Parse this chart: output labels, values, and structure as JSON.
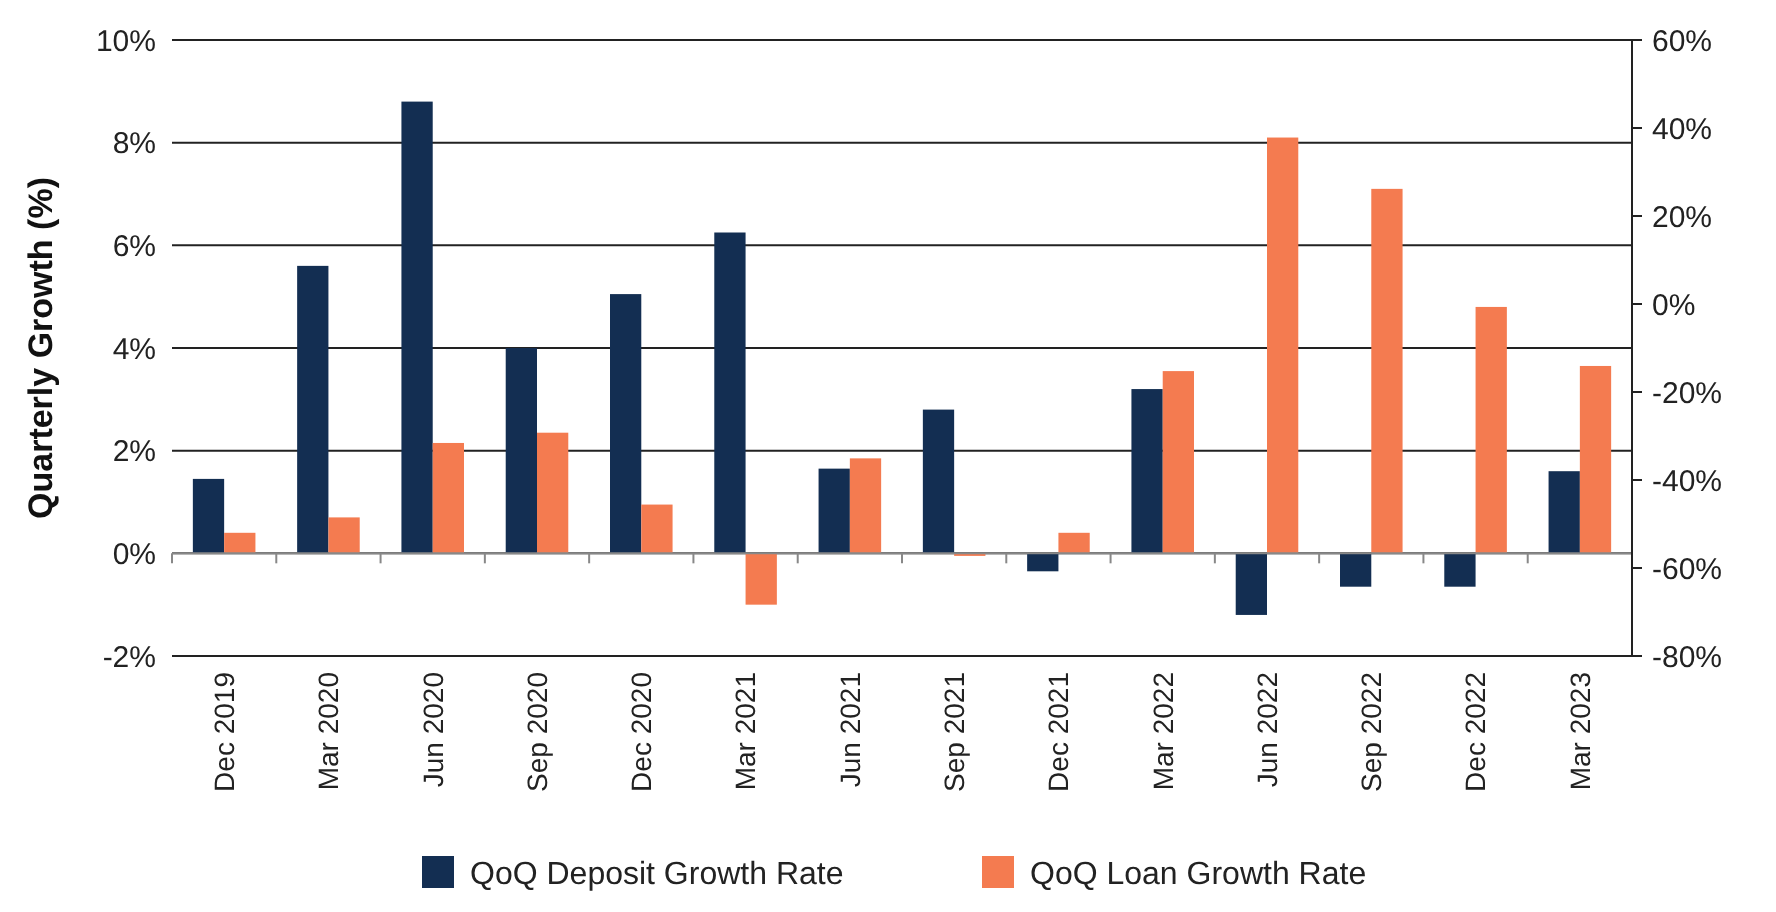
{
  "chart_data": {
    "type": "bar",
    "ylabel": "Quarterly Growth (%)",
    "categories": [
      "Dec 2019",
      "Mar 2020",
      "Jun 2020",
      "Sep 2020",
      "Dec 2020",
      "Mar 2021",
      "Jun 2021",
      "Sep 2021",
      "Dec 2021",
      "Mar 2022",
      "Jun 2022",
      "Sep 2022",
      "Dec 2022",
      "Mar 2023"
    ],
    "series": [
      {
        "name": "QoQ Deposit Growth Rate",
        "color": "#132e52",
        "values": [
          1.45,
          5.6,
          8.8,
          4.0,
          5.05,
          6.25,
          1.65,
          2.8,
          -0.35,
          3.2,
          -1.2,
          -0.65,
          -0.65,
          1.6
        ]
      },
      {
        "name": "QoQ Loan Growth Rate",
        "color": "#f47b50",
        "values": [
          0.4,
          0.7,
          2.15,
          2.35,
          0.95,
          -1.0,
          1.85,
          -0.05,
          0.4,
          3.55,
          8.1,
          7.1,
          4.8,
          3.65
        ]
      }
    ],
    "ylim": [
      -2,
      10
    ],
    "yticks": [
      {
        "value": -2,
        "label": "-2%"
      },
      {
        "value": 0,
        "label": "0%"
      },
      {
        "value": 2,
        "label": "2%"
      },
      {
        "value": 4,
        "label": "4%"
      },
      {
        "value": 6,
        "label": "6%"
      },
      {
        "value": 8,
        "label": "8%"
      },
      {
        "value": 10,
        "label": "10%"
      }
    ],
    "y2lim": [
      -80,
      60
    ],
    "y2ticks": [
      {
        "value": -80,
        "label": "-80%"
      },
      {
        "value": -60,
        "label": "-60%"
      },
      {
        "value": -40,
        "label": "-40%"
      },
      {
        "value": -20,
        "label": "-20%"
      },
      {
        "value": 0,
        "label": "0%"
      },
      {
        "value": 20,
        "label": "20%"
      },
      {
        "value": 40,
        "label": "40%"
      },
      {
        "value": 60,
        "label": "60%"
      }
    ],
    "grid": "y",
    "legend": "bottom"
  }
}
